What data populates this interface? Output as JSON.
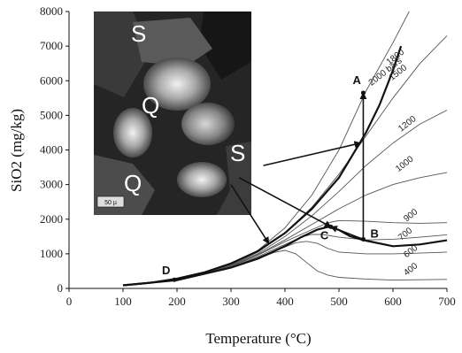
{
  "chart_data": {
    "type": "line",
    "title": "",
    "xlabel": "Temperature (°C)",
    "ylabel": "SiO2 (mg/kg)",
    "xlim": [
      0,
      700
    ],
    "ylim": [
      0,
      8000
    ],
    "xticks": [
      "0",
      "100",
      "200",
      "300",
      "400",
      "500",
      "600",
      "700"
    ],
    "yticks": [
      "0",
      "1000",
      "2000",
      "3000",
      "4000",
      "5000",
      "6000",
      "7000",
      "8000"
    ],
    "grid": false,
    "series": [
      {
        "name": "2000 bars",
        "x": [
          100,
          200,
          300,
          350,
          400,
          450,
          500,
          550,
          600,
          630
        ],
        "y": [
          95,
          260,
          680,
          1100,
          1750,
          2700,
          4000,
          5700,
          7100,
          8000
        ]
      },
      {
        "name": "1500",
        "x": [
          100,
          200,
          300,
          350,
          400,
          450,
          500,
          550,
          600,
          650,
          700
        ],
        "y": [
          95,
          255,
          660,
          1050,
          1600,
          2350,
          3300,
          4400,
          5500,
          6500,
          7300
        ]
      },
      {
        "name": "1200",
        "x": [
          100,
          200,
          300,
          350,
          400,
          450,
          500,
          550,
          600,
          650,
          700
        ],
        "y": [
          95,
          255,
          650,
          1010,
          1500,
          2100,
          2800,
          3550,
          4200,
          4750,
          5150
        ]
      },
      {
        "name": "1000",
        "x": [
          100,
          200,
          300,
          350,
          400,
          450,
          500,
          550,
          600,
          650,
          700
        ],
        "y": [
          95,
          250,
          640,
          980,
          1400,
          1850,
          2300,
          2700,
          3000,
          3200,
          3350
        ]
      },
      {
        "name": "900",
        "x": [
          100,
          200,
          300,
          350,
          400,
          450,
          480,
          500,
          550,
          600,
          650,
          700
        ],
        "y": [
          95,
          250,
          630,
          960,
          1350,
          1700,
          1900,
          1960,
          1940,
          1900,
          1880,
          1900
        ]
      },
      {
        "name": "700",
        "x": [
          100,
          200,
          300,
          350,
          400,
          430,
          450,
          470,
          500,
          550,
          600,
          650,
          700
        ],
        "y": [
          95,
          245,
          615,
          920,
          1270,
          1480,
          1560,
          1560,
          1480,
          1400,
          1420,
          1480,
          1550
        ]
      },
      {
        "name": "600",
        "x": [
          100,
          200,
          300,
          350,
          400,
          420,
          440,
          460,
          480,
          500,
          550,
          600,
          650,
          700
        ],
        "y": [
          95,
          245,
          605,
          900,
          1200,
          1320,
          1360,
          1300,
          1150,
          1050,
          1000,
          1000,
          1020,
          1050
        ]
      },
      {
        "name": "400",
        "x": [
          100,
          200,
          300,
          350,
          380,
          400,
          420,
          440,
          460,
          480,
          500,
          550,
          600,
          650,
          700
        ],
        "y": [
          95,
          240,
          590,
          860,
          1040,
          1100,
          1000,
          750,
          500,
          380,
          320,
          270,
          240,
          250,
          260
        ]
      }
    ],
    "boundary_curves": [
      {
        "id": "solubility-curve",
        "x": [
          100,
          150,
          200,
          250,
          300,
          350,
          400,
          450,
          500,
          550,
          575,
          600,
          615
        ],
        "y": [
          90,
          160,
          280,
          460,
          720,
          1080,
          1600,
          2300,
          3200,
          4500,
          5300,
          6300,
          7000
        ]
      },
      {
        "id": "lower-curve",
        "x": [
          100,
          200,
          300,
          350,
          400,
          430,
          460,
          480,
          500,
          520,
          540,
          550,
          600,
          650,
          700
        ],
        "y": [
          90,
          240,
          600,
          860,
          1220,
          1480,
          1700,
          1780,
          1690,
          1510,
          1420,
          1380,
          1220,
          1270,
          1390
        ]
      }
    ],
    "points": [
      {
        "label": "A",
        "x": 545,
        "y": 5650
      },
      {
        "label": "B",
        "x": 545,
        "y": 1420
      },
      {
        "label": "C",
        "x": 485,
        "y": 1780
      },
      {
        "label": "D",
        "x": 195,
        "y": 250
      }
    ],
    "arrows": [
      {
        "id": "b-to-a",
        "from": [
          545,
          1420
        ],
        "to": [
          545,
          5650
        ]
      },
      {
        "id": "b-to-c",
        "from": [
          545,
          1420
        ],
        "to": [
          485,
          1780
        ]
      },
      {
        "id": "inset-to-curve",
        "from": [
          360,
          3550
        ],
        "to": [
          540,
          4200
        ]
      },
      {
        "id": "inset-to-c",
        "from": [
          315,
          3200
        ],
        "to": [
          485,
          1780
        ]
      },
      {
        "id": "inset-down",
        "from": [
          300,
          3000
        ],
        "to": [
          370,
          1300
        ]
      }
    ],
    "isobar_labels": [
      {
        "text": "2000 bars",
        "x": 560,
        "y": 5850
      },
      {
        "text": "1800",
        "x": 593,
        "y": 6450
      },
      {
        "text": "1500",
        "x": 598,
        "y": 6000
      },
      {
        "text": "1200",
        "x": 615,
        "y": 4520
      },
      {
        "text": "1000",
        "x": 610,
        "y": 3360
      },
      {
        "text": "900",
        "x": 625,
        "y": 1920
      },
      {
        "text": "700",
        "x": 615,
        "y": 1380
      },
      {
        "text": "600",
        "x": 625,
        "y": 880
      },
      {
        "text": "400",
        "x": 625,
        "y": 360
      }
    ],
    "inset": {
      "labels": [
        "S",
        "Q",
        "S",
        "Q"
      ],
      "scale_text": "50 µ"
    },
    "colors": {
      "axis": "#111111",
      "thin_line": "#555555",
      "thick_line": "#111111",
      "inset_bg": "#222222"
    }
  }
}
